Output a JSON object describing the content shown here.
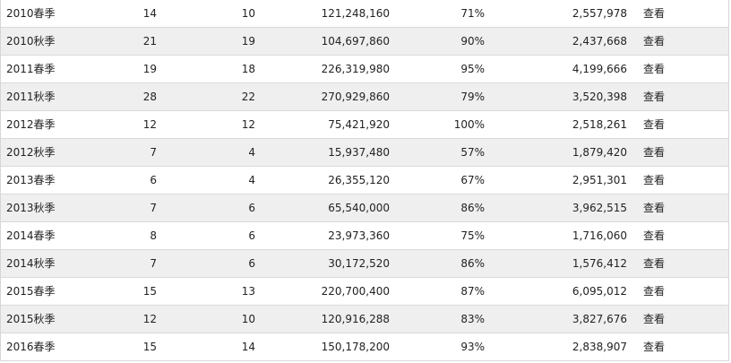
{
  "rows": [
    {
      "season": "2010春季",
      "c2": "14",
      "c3": "10",
      "c4": "121,248,160",
      "c5": "71%",
      "c6": "2,557,978",
      "action": "查看"
    },
    {
      "season": "2010秋季",
      "c2": "21",
      "c3": "19",
      "c4": "104,697,860",
      "c5": "90%",
      "c6": "2,437,668",
      "action": "查看"
    },
    {
      "season": "2011春季",
      "c2": "19",
      "c3": "18",
      "c4": "226,319,980",
      "c5": "95%",
      "c6": "4,199,666",
      "action": "查看"
    },
    {
      "season": "2011秋季",
      "c2": "28",
      "c3": "22",
      "c4": "270,929,860",
      "c5": "79%",
      "c6": "3,520,398",
      "action": "查看"
    },
    {
      "season": "2012春季",
      "c2": "12",
      "c3": "12",
      "c4": "75,421,920",
      "c5": "100%",
      "c6": "2,518,261",
      "action": "查看"
    },
    {
      "season": "2012秋季",
      "c2": "7",
      "c3": "4",
      "c4": "15,937,480",
      "c5": "57%",
      "c6": "1,879,420",
      "action": "查看"
    },
    {
      "season": "2013春季",
      "c2": "6",
      "c3": "4",
      "c4": "26,355,120",
      "c5": "67%",
      "c6": "2,951,301",
      "action": "查看"
    },
    {
      "season": "2013秋季",
      "c2": "7",
      "c3": "6",
      "c4": "65,540,000",
      "c5": "86%",
      "c6": "3,962,515",
      "action": "查看"
    },
    {
      "season": "2014春季",
      "c2": "8",
      "c3": "6",
      "c4": "23,973,360",
      "c5": "75%",
      "c6": "1,716,060",
      "action": "查看"
    },
    {
      "season": "2014秋季",
      "c2": "7",
      "c3": "6",
      "c4": "30,172,520",
      "c5": "86%",
      "c6": "1,576,412",
      "action": "查看"
    },
    {
      "season": "2015春季",
      "c2": "15",
      "c3": "13",
      "c4": "220,700,400",
      "c5": "87%",
      "c6": "6,095,012",
      "action": "查看"
    },
    {
      "season": "2015秋季",
      "c2": "12",
      "c3": "10",
      "c4": "120,916,288",
      "c5": "83%",
      "c6": "3,827,676",
      "action": "查看"
    },
    {
      "season": "2016春季",
      "c2": "15",
      "c3": "14",
      "c4": "150,178,200",
      "c5": "93%",
      "c6": "2,838,907",
      "action": "查看"
    }
  ],
  "colors": {
    "row_alt_bg": "#efefef",
    "border": "#d9d9d9",
    "text": "#222222"
  }
}
